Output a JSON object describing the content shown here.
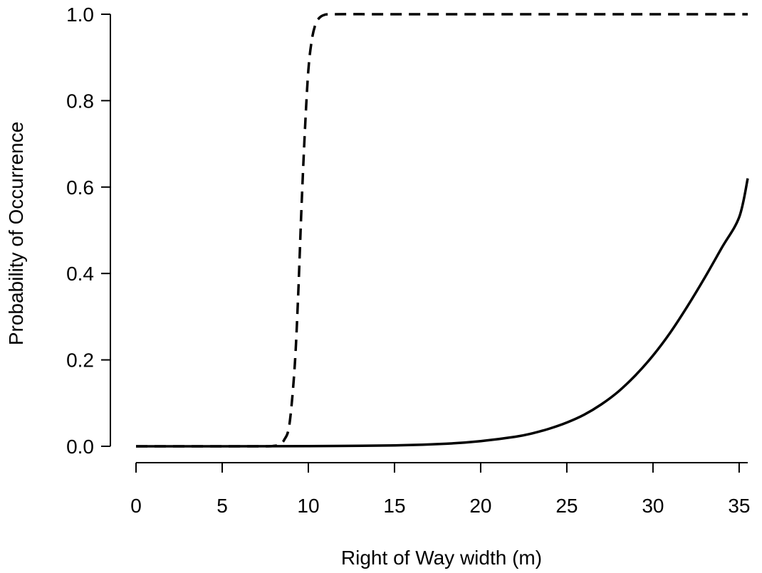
{
  "chart_data": {
    "type": "line",
    "xlabel": "Right of Way width (m)",
    "ylabel": "Probability of Occurrence",
    "xlim": [
      0,
      35.5
    ],
    "ylim": [
      0,
      1.0
    ],
    "xticks": [
      "0",
      "5",
      "10",
      "15",
      "20",
      "25",
      "30",
      "35"
    ],
    "yticks": [
      "0.0",
      "0.2",
      "0.4",
      "0.6",
      "0.8",
      "1.0"
    ],
    "grid": false,
    "legend": "none",
    "series": [
      {
        "style": "dashed",
        "color": "#000000",
        "x": [
          0,
          5,
          7.5,
          8.0,
          8.3,
          8.6,
          8.9,
          9.2,
          9.4,
          9.6,
          9.8,
          10.0,
          10.2,
          10.4,
          10.6,
          10.9,
          11.5,
          15,
          20,
          25,
          30,
          35.5
        ],
        "y": [
          0.0,
          0.0,
          0.0,
          0.001,
          0.004,
          0.015,
          0.05,
          0.18,
          0.34,
          0.55,
          0.73,
          0.87,
          0.94,
          0.975,
          0.99,
          0.998,
          1.0,
          1.0,
          1.0,
          1.0,
          1.0,
          1.0
        ]
      },
      {
        "style": "solid",
        "color": "#000000",
        "x": [
          0,
          5,
          10,
          15,
          18,
          20,
          22,
          23,
          24,
          25,
          26,
          27,
          28,
          29,
          30,
          31,
          32,
          33,
          34,
          35,
          35.5
        ],
        "y": [
          0.0,
          0.0,
          0.0005,
          0.002,
          0.006,
          0.012,
          0.022,
          0.03,
          0.041,
          0.055,
          0.073,
          0.097,
          0.127,
          0.165,
          0.21,
          0.263,
          0.324,
          0.39,
          0.46,
          0.53,
          0.62
        ]
      }
    ]
  }
}
